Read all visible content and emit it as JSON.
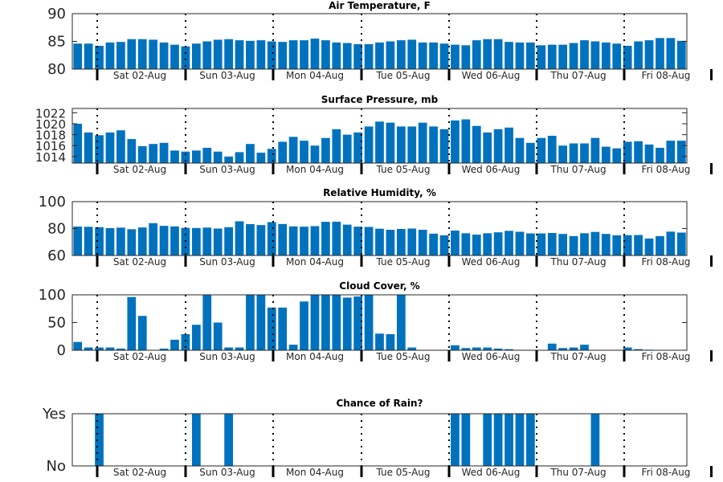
{
  "figure": {
    "bar_color": "#0072BD",
    "days": [
      "Sat 02-Aug",
      "Sun 03-Aug",
      "Mon 04-Aug",
      "Tue 05-Aug",
      "Wed 06-Aug",
      "Thu 07-Aug",
      "Fri 08-Aug"
    ]
  },
  "chart_data": [
    {
      "type": "bar",
      "title": "Air Temperature, F",
      "yticks": [
        "80",
        "85",
        "90"
      ],
      "ylim": [
        80,
        90
      ],
      "grid": false,
      "values": [
        84.6,
        84.6,
        84.2,
        84.8,
        84.9,
        85.4,
        85.4,
        85.3,
        84.8,
        84.4,
        84.1,
        84.6,
        85.0,
        85.3,
        85.4,
        85.2,
        85.1,
        85.2,
        85.0,
        84.9,
        85.2,
        85.2,
        85.5,
        85.2,
        84.8,
        84.7,
        84.5,
        84.5,
        84.8,
        85.0,
        85.2,
        85.3,
        84.8,
        84.8,
        84.6,
        84.4,
        84.3,
        85.2,
        85.4,
        85.4,
        84.9,
        84.8,
        84.8,
        84.3,
        84.4,
        84.4,
        84.7,
        85.2,
        85.0,
        84.8,
        84.6,
        84.2,
        85.0,
        85.2,
        85.6,
        85.6,
        85.1
      ]
    },
    {
      "type": "bar",
      "title": "Surface Pressure, mb",
      "yticks": [
        "1014",
        "1016",
        "1018",
        "1020",
        "1022"
      ],
      "ylim": [
        1012.8,
        1022.8
      ],
      "grid": false,
      "values": [
        1020.0,
        1018.4,
        1017.9,
        1018.4,
        1018.8,
        1017.2,
        1015.9,
        1016.3,
        1016.5,
        1015.1,
        1014.9,
        1015.1,
        1015.6,
        1014.9,
        1014.0,
        1014.8,
        1016.3,
        1014.7,
        1015.4,
        1016.7,
        1017.6,
        1016.9,
        1016.0,
        1017.4,
        1019.0,
        1018.0,
        1018.4,
        1019.5,
        1020.4,
        1020.2,
        1019.5,
        1019.5,
        1020.2,
        1019.5,
        1019.0,
        1020.6,
        1020.8,
        1019.6,
        1018.4,
        1019.0,
        1019.3,
        1017.4,
        1016.5,
        1017.4,
        1017.8,
        1016.0,
        1016.4,
        1016.4,
        1017.4,
        1015.8,
        1015.5,
        1016.7,
        1016.8,
        1016.2,
        1015.6,
        1016.9,
        1016.9
      ]
    },
    {
      "type": "bar",
      "title": "Relative Humidity, %",
      "yticks": [
        "60",
        "80",
        "100"
      ],
      "ylim": [
        60,
        100
      ],
      "grid": false,
      "values": [
        81.5,
        81.3,
        81.0,
        80.3,
        80.7,
        79.5,
        80.8,
        84.0,
        82.0,
        81.6,
        80.5,
        80.4,
        80.7,
        80.0,
        81.0,
        85.4,
        83.3,
        82.6,
        84.8,
        83.4,
        81.6,
        81.4,
        81.8,
        85.0,
        85.1,
        82.9,
        81.4,
        81.2,
        79.9,
        79.1,
        79.7,
        80.0,
        79.1,
        76.2,
        75.0,
        78.5,
        76.5,
        75.5,
        76.5,
        77.2,
        78.3,
        77.6,
        76.4,
        76.4,
        76.7,
        76.0,
        74.4,
        76.5,
        77.5,
        76.0,
        75.0,
        75.1,
        75.2,
        72.6,
        74.4,
        77.7,
        77.0
      ]
    },
    {
      "type": "bar",
      "title": "Cloud Cover, %",
      "yticks": [
        "0",
        "50",
        "100"
      ],
      "ylim": [
        0,
        100
      ],
      "grid": false,
      "values": [
        15,
        5,
        5,
        5,
        3,
        96,
        62,
        0,
        3,
        19,
        29,
        46,
        100,
        50,
        5,
        5,
        100,
        100,
        77,
        77,
        10,
        88,
        100,
        100,
        100,
        95,
        97,
        100,
        30,
        29,
        100,
        5,
        0,
        0,
        0,
        9,
        4,
        5,
        5,
        3,
        2,
        0,
        0,
        0,
        12,
        4,
        5,
        10,
        0,
        0,
        0,
        5,
        2,
        1,
        0,
        0,
        0
      ]
    },
    {
      "type": "bar",
      "title": "Chance of Rain?",
      "yticks": [
        "No",
        "Yes"
      ],
      "ylim": [
        0,
        1
      ],
      "grid": false,
      "values": [
        0,
        0,
        1,
        0,
        0,
        0,
        0,
        0,
        0,
        0,
        0,
        1,
        0,
        0,
        1,
        0,
        0,
        0,
        0,
        0,
        0,
        0,
        0,
        0,
        0,
        0,
        0,
        0,
        0,
        0,
        0,
        0,
        0,
        0,
        0,
        1,
        1,
        0,
        1,
        1,
        1,
        1,
        1,
        0,
        0,
        0,
        0,
        0,
        1,
        0,
        0,
        0,
        0,
        0,
        0,
        0,
        0
      ]
    }
  ]
}
